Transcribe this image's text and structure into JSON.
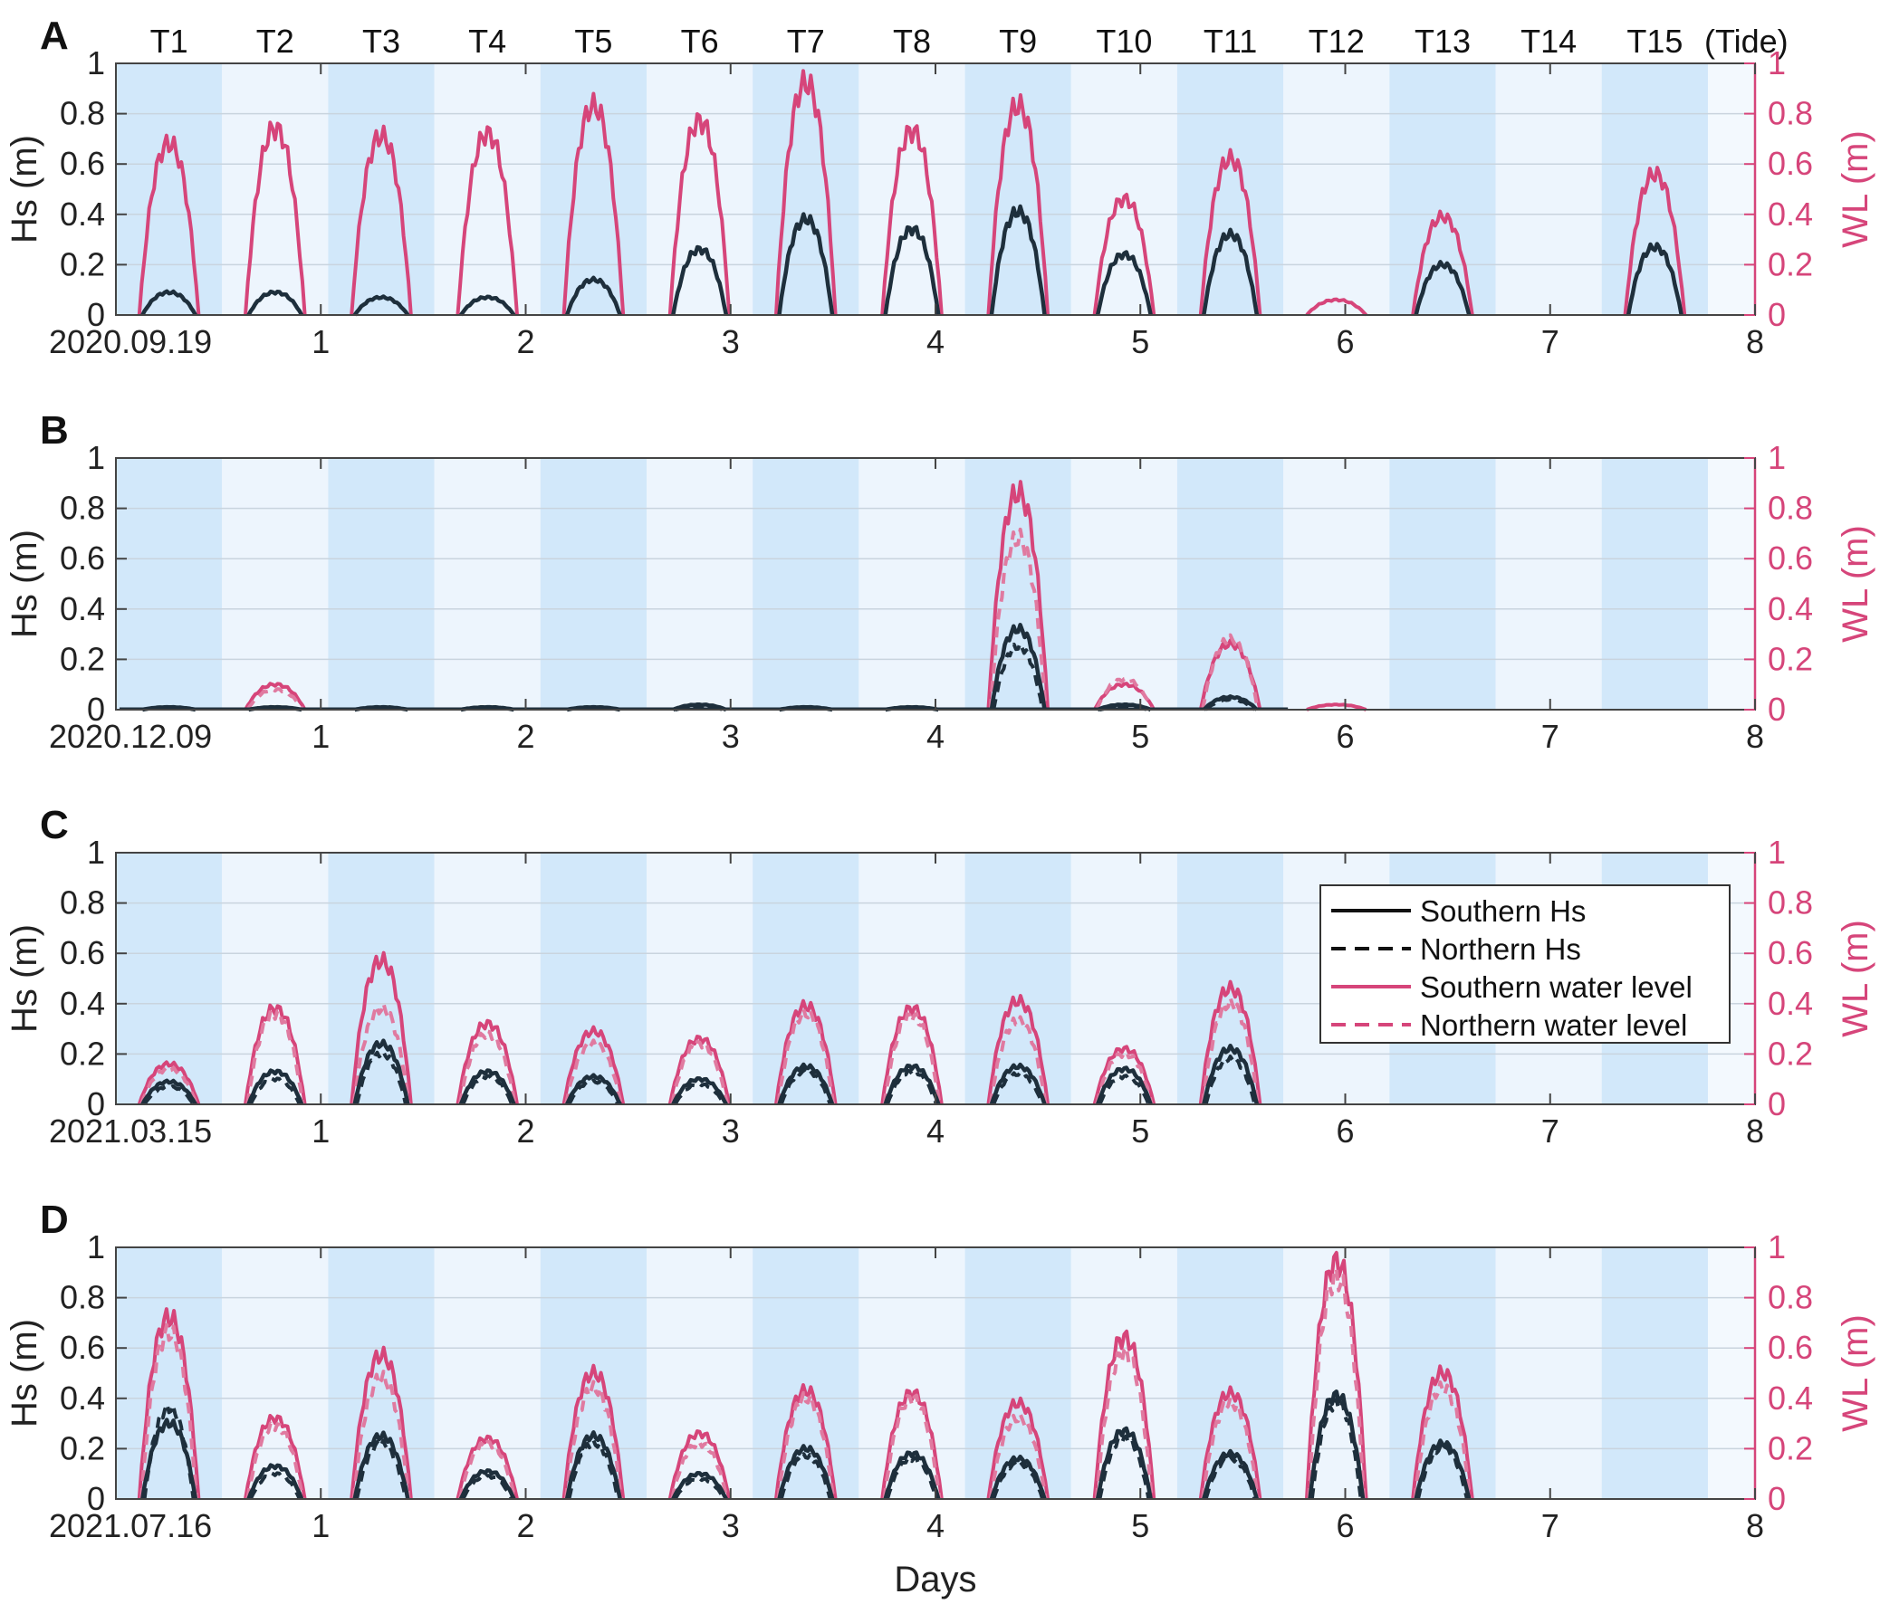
{
  "figure": {
    "xlabel": "Days",
    "hs_axis_label": "Hs (m)",
    "wl_axis_label": "WL (m)",
    "tide_label": "(Tide)"
  },
  "colors": {
    "band_dark": "#d2e8fa",
    "band_light": "#edf5fd",
    "outside": "#f3f9fe",
    "hs": "#1e2f3c",
    "wl": "#d6457a",
    "wl_north": "#e07aa0",
    "grid": "#c9d4de"
  },
  "tides": [
    "T1",
    "T2",
    "T3",
    "T4",
    "T5",
    "T6",
    "T7",
    "T8",
    "T9",
    "T10",
    "T11",
    "T12",
    "T13",
    "T14",
    "T15"
  ],
  "legend": {
    "entries": [
      {
        "label": "Southern Hs",
        "style": "solid-dark"
      },
      {
        "label": "Northern Hs",
        "style": "dashed-dark"
      },
      {
        "label": "Southern water level",
        "style": "solid-pink"
      },
      {
        "label": "Northern water level",
        "style": "dashed-pink"
      }
    ],
    "location": "inside panel C, right"
  },
  "chart_data": [
    {
      "panel": "A",
      "type": "line",
      "start_date": "2020.09.19",
      "x_ticks": [
        "1",
        "2",
        "3",
        "4",
        "5",
        "6",
        "7",
        "8"
      ],
      "xlim": [
        0,
        8
      ],
      "y_ticks": [
        "0",
        "0.2",
        "0.4",
        "0.6",
        "0.8",
        "1"
      ],
      "ylim": [
        0,
        1
      ],
      "wl_ticks": [
        "0",
        "0.2",
        "0.4",
        "0.6",
        "0.8",
        "1"
      ],
      "wl_lim": [
        0,
        1
      ],
      "southern_wl_peak": [
        0.68,
        0.74,
        0.71,
        0.72,
        0.83,
        0.77,
        0.92,
        0.73,
        0.83,
        0.46,
        0.62,
        0.06,
        0.39,
        0,
        0.56
      ],
      "northern_wl_peak": [],
      "southern_hs_peak": [
        0.09,
        0.09,
        0.07,
        0.07,
        0.14,
        0.26,
        0.38,
        0.34,
        0.41,
        0.24,
        0.32,
        0,
        0.2,
        0,
        0.27
      ],
      "northern_hs_peak": []
    },
    {
      "panel": "B",
      "type": "line",
      "start_date": "2020.12.09",
      "x_ticks": [
        "1",
        "2",
        "3",
        "4",
        "5",
        "6",
        "7",
        "8"
      ],
      "xlim": [
        0,
        8
      ],
      "y_ticks": [
        "0",
        "0.2",
        "0.4",
        "0.6",
        "0.8",
        "1"
      ],
      "ylim": [
        0,
        1
      ],
      "wl_ticks": [
        "0",
        "0.2",
        "0.4",
        "0.6",
        "0.8",
        "1"
      ],
      "wl_lim": [
        0,
        1
      ],
      "southern_wl_peak": [
        0,
        0.1,
        0,
        0,
        0,
        0,
        0,
        0,
        0.86,
        0.1,
        0.26,
        0.02,
        0,
        0,
        0
      ],
      "northern_wl_peak": [
        0,
        0.08,
        0,
        0,
        0,
        0,
        0,
        0,
        0.68,
        0.12,
        0.28,
        0,
        0,
        0,
        0
      ],
      "southern_hs_peak": [
        0.01,
        0.01,
        0.01,
        0.01,
        0.01,
        0.02,
        0.01,
        0.01,
        0.32,
        0.02,
        0.05,
        0,
        0,
        0,
        0
      ],
      "northern_hs_peak": [
        0,
        0,
        0,
        0,
        0,
        0.01,
        0,
        0,
        0.25,
        0.01,
        0.04,
        0,
        0,
        0,
        0
      ]
    },
    {
      "panel": "C",
      "type": "line",
      "start_date": "2021.03.15",
      "x_ticks": [
        "1",
        "2",
        "3",
        "4",
        "5",
        "6",
        "7",
        "8"
      ],
      "xlim": [
        0,
        8
      ],
      "y_ticks": [
        "0",
        "0.2",
        "0.4",
        "0.6",
        "0.8",
        "1"
      ],
      "ylim": [
        0,
        1
      ],
      "wl_ticks": [
        "0",
        "0.2",
        "0.4",
        "0.6",
        "0.8",
        "1"
      ],
      "wl_lim": [
        0,
        1
      ],
      "southern_wl_peak": [
        0.16,
        0.38,
        0.57,
        0.32,
        0.29,
        0.26,
        0.39,
        0.38,
        0.41,
        0.22,
        0.46,
        0,
        0,
        0,
        0
      ],
      "northern_wl_peak": [
        0.14,
        0.36,
        0.38,
        0.28,
        0.24,
        0.24,
        0.36,
        0.35,
        0.33,
        0.2,
        0.4,
        0,
        0,
        0,
        0
      ],
      "southern_hs_peak": [
        0.09,
        0.13,
        0.24,
        0.13,
        0.11,
        0.1,
        0.15,
        0.15,
        0.15,
        0.14,
        0.22,
        0,
        0,
        0,
        0
      ],
      "northern_hs_peak": [
        0.07,
        0.1,
        0.2,
        0.11,
        0.09,
        0.08,
        0.13,
        0.13,
        0.12,
        0.11,
        0.18,
        0,
        0,
        0,
        0
      ]
    },
    {
      "panel": "D",
      "type": "line",
      "start_date": "2021.07.16",
      "x_ticks": [
        "1",
        "2",
        "3",
        "4",
        "5",
        "6",
        "7",
        "8"
      ],
      "xlim": [
        0,
        8
      ],
      "y_ticks": [
        "0",
        "0.2",
        "0.4",
        "0.6",
        "0.8",
        "1"
      ],
      "ylim": [
        0,
        1
      ],
      "wl_ticks": [
        "0",
        "0.2",
        "0.4",
        "0.6",
        "0.8",
        "1"
      ],
      "wl_lim": [
        0,
        1
      ],
      "southern_wl_peak": [
        0.72,
        0.32,
        0.57,
        0.24,
        0.5,
        0.26,
        0.43,
        0.42,
        0.38,
        0.64,
        0.42,
        0.94,
        0.5,
        0,
        0
      ],
      "northern_wl_peak": [
        0.66,
        0.29,
        0.48,
        0.22,
        0.44,
        0.22,
        0.4,
        0.4,
        0.32,
        0.58,
        0.38,
        0.88,
        0.44,
        0,
        0
      ],
      "southern_hs_peak": [
        0.3,
        0.13,
        0.25,
        0.11,
        0.25,
        0.1,
        0.2,
        0.18,
        0.16,
        0.27,
        0.18,
        0.41,
        0.22,
        0,
        0
      ],
      "northern_hs_peak": [
        0.36,
        0.1,
        0.22,
        0.09,
        0.22,
        0.08,
        0.17,
        0.16,
        0.14,
        0.24,
        0.16,
        0.38,
        0.2,
        0,
        0
      ]
    }
  ]
}
